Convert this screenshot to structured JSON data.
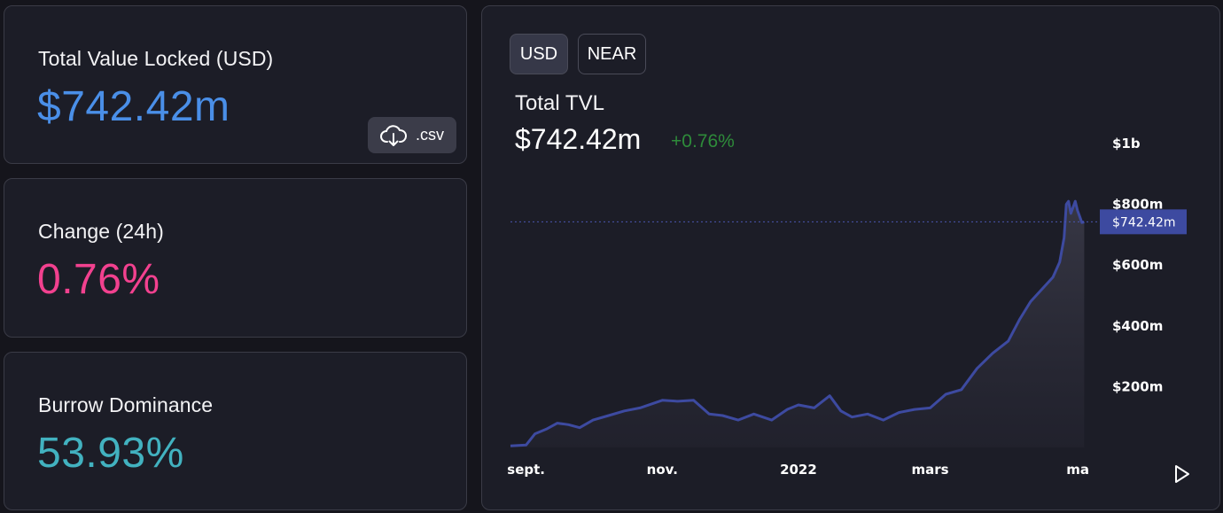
{
  "cards": {
    "tvl": {
      "label": "Total Value Locked (USD)",
      "value": "$742.42m",
      "csv_label": ".csv",
      "csv_icon": "cloud-download-icon"
    },
    "change": {
      "label": "Change (24h)",
      "value": "0.76%"
    },
    "dominance": {
      "label": "Burrow Dominance",
      "value": "53.93%"
    }
  },
  "colors": {
    "tvl": "#4a8fe8",
    "change": "#f2418f",
    "dominance": "#42b2c0",
    "line": "#3d4aa0",
    "positive": "#2e8b3a",
    "price_tag": "#3d4aa0"
  },
  "chart_panel": {
    "toggle": [
      {
        "label": "USD",
        "active": true
      },
      {
        "label": "NEAR",
        "active": false
      }
    ],
    "title": "Total TVL",
    "current_value": "$742.42m",
    "change": "+0.76%",
    "current_price_label": "$742.42m",
    "play_icon": "play-icon"
  },
  "chart_data": {
    "type": "area",
    "title": "Total TVL",
    "xlabel": "",
    "ylabel": "",
    "x_ticks": [
      "sept.",
      "nov.",
      "2022",
      "mars",
      "ma"
    ],
    "y_ticks": [
      {
        "value": 200,
        "label": "$200m"
      },
      {
        "value": 400,
        "label": "$400m"
      },
      {
        "value": 600,
        "label": "$600m"
      },
      {
        "value": 800,
        "label": "$800m"
      },
      {
        "value": 1000,
        "label": "$1b"
      }
    ],
    "ylim": [
      0,
      1000
    ],
    "grid": false,
    "current_value": 742.42,
    "series": [
      {
        "unit": "USD millions",
        "x": [
          "2021-08-25",
          "2021-09-01",
          "2021-09-05",
          "2021-09-10",
          "2021-09-15",
          "2021-09-20",
          "2021-09-25",
          "2021-10-01",
          "2021-10-08",
          "2021-10-15",
          "2021-10-22",
          "2021-11-01",
          "2021-11-08",
          "2021-11-15",
          "2021-11-22",
          "2021-11-28",
          "2021-12-05",
          "2021-12-12",
          "2021-12-20",
          "2021-12-27",
          "2022-01-01",
          "2022-01-08",
          "2022-01-15",
          "2022-01-20",
          "2022-01-25",
          "2022-02-01",
          "2022-02-08",
          "2022-02-15",
          "2022-02-22",
          "2022-03-01",
          "2022-03-08",
          "2022-03-15",
          "2022-03-22",
          "2022-03-29",
          "2022-04-05",
          "2022-04-10",
          "2022-04-15",
          "2022-04-20",
          "2022-04-25",
          "2022-04-28",
          "2022-04-30",
          "2022-05-01",
          "2022-05-02",
          "2022-05-03",
          "2022-05-04",
          "2022-05-05",
          "2022-05-06",
          "2022-05-07",
          "2022-05-08",
          "2022-05-09"
        ],
        "y": [
          5,
          8,
          45,
          60,
          80,
          75,
          65,
          90,
          105,
          120,
          130,
          155,
          152,
          155,
          110,
          105,
          90,
          110,
          90,
          125,
          140,
          130,
          170,
          120,
          100,
          110,
          90,
          115,
          125,
          130,
          175,
          190,
          260,
          310,
          350,
          420,
          480,
          520,
          560,
          610,
          690,
          800,
          810,
          770,
          790,
          810,
          780,
          760,
          740,
          742
        ]
      }
    ]
  }
}
